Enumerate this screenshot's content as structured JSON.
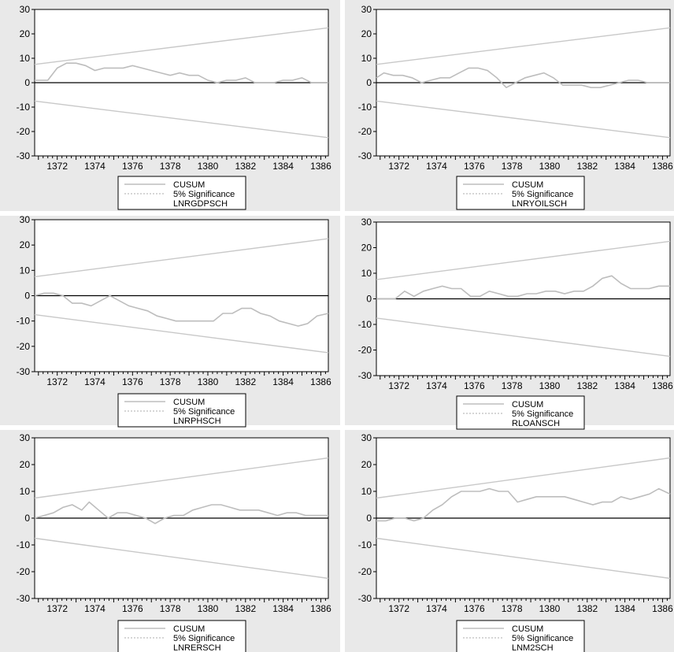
{
  "colors": {
    "cusum": "#bdbdbd",
    "significance": "#c8c8c8",
    "zero_line": "#000000",
    "background": "#e9e9e9"
  },
  "chart_data": [
    {
      "type": "line",
      "xlim": [
        1370.8,
        1386.4
      ],
      "ylim": [
        -30,
        30
      ],
      "yticks": [
        "30",
        "20",
        "10",
        "0",
        "-10",
        "-20",
        "-30"
      ],
      "xticks": [
        "1372",
        "1374",
        "1376",
        "1378",
        "1380",
        "1382",
        "1384",
        "1386"
      ],
      "legend": [
        "CUSUM",
        "5% Significance"
      ],
      "legend_title": "LNRGDPSCH",
      "series": [
        {
          "name": "CUSUM",
          "x": [
            1370.8,
            1371.5,
            1372.0,
            1372.5,
            1373.0,
            1373.5,
            1374.0,
            1374.5,
            1375.0,
            1375.5,
            1376.0,
            1376.5,
            1377.0,
            1377.5,
            1378.0,
            1378.5,
            1379.0,
            1379.5,
            1380.0,
            1380.5,
            1381.0,
            1381.5,
            1382.0,
            1382.5,
            1383.0,
            1383.5,
            1384.0,
            1384.5,
            1385.0,
            1385.5,
            1386.0,
            1386.4
          ],
          "values": [
            1,
            1,
            6,
            8,
            8,
            7,
            5,
            6,
            6,
            6,
            7,
            6,
            5,
            4,
            3,
            4,
            3,
            3,
            1,
            0,
            1,
            1,
            2,
            0,
            0,
            0,
            1,
            1,
            2,
            0,
            0,
            0
          ]
        },
        {
          "name": "5% Significance upper",
          "x": [
            1370.8,
            1386.4
          ],
          "values": [
            7.5,
            22.5
          ]
        },
        {
          "name": "5% Significance lower",
          "x": [
            1370.8,
            1386.4
          ],
          "values": [
            -7.5,
            -22.5
          ]
        }
      ]
    },
    {
      "type": "line",
      "xlim": [
        1370.8,
        1386.4
      ],
      "ylim": [
        -30,
        30
      ],
      "yticks": [
        "30",
        "20",
        "10",
        "0",
        "-10",
        "-20",
        "-30"
      ],
      "xticks": [
        "1372",
        "1374",
        "1376",
        "1378",
        "1380",
        "1382",
        "1384",
        "1386"
      ],
      "legend": [
        "CUSUM",
        "5% Significance"
      ],
      "legend_title": "LNRYOILSCH",
      "series": [
        {
          "name": "CUSUM",
          "x": [
            1370.8,
            1371.2,
            1371.7,
            1372.2,
            1372.7,
            1373.2,
            1373.7,
            1374.2,
            1374.7,
            1375.2,
            1375.7,
            1376.2,
            1376.7,
            1377.2,
            1377.7,
            1378.2,
            1378.7,
            1379.2,
            1379.7,
            1380.2,
            1380.7,
            1381.2,
            1381.7,
            1382.2,
            1382.7,
            1383.2,
            1383.7,
            1384.2,
            1384.7,
            1385.2,
            1385.7,
            1386.4
          ],
          "values": [
            2,
            4,
            3,
            3,
            2,
            0,
            1,
            2,
            2,
            4,
            6,
            6,
            5,
            2,
            -2,
            0,
            2,
            3,
            4,
            2,
            -1,
            -1,
            -1,
            -2,
            -2,
            -1,
            0,
            1,
            1,
            0,
            0,
            0
          ]
        },
        {
          "name": "5% Significance upper",
          "x": [
            1370.8,
            1386.4
          ],
          "values": [
            7.5,
            22.5
          ]
        },
        {
          "name": "5% Significance lower",
          "x": [
            1370.8,
            1386.4
          ],
          "values": [
            -7.5,
            -22.5
          ]
        }
      ]
    },
    {
      "type": "line",
      "xlim": [
        1370.8,
        1386.4
      ],
      "ylim": [
        -30,
        30
      ],
      "yticks": [
        "30",
        "20",
        "10",
        "0",
        "-10",
        "-20",
        "-30"
      ],
      "xticks": [
        "1372",
        "1374",
        "1376",
        "1378",
        "1380",
        "1382",
        "1384",
        "1386"
      ],
      "legend": [
        "CUSUM",
        "5% Significance"
      ],
      "legend_title": "LNRPHSCH",
      "series": [
        {
          "name": "CUSUM",
          "x": [
            1370.8,
            1371.3,
            1371.8,
            1372.3,
            1372.8,
            1373.3,
            1373.8,
            1374.3,
            1374.8,
            1375.3,
            1375.8,
            1376.3,
            1376.8,
            1377.3,
            1377.8,
            1378.3,
            1378.8,
            1379.3,
            1379.8,
            1380.3,
            1380.8,
            1381.3,
            1381.8,
            1382.3,
            1382.8,
            1383.3,
            1383.8,
            1384.3,
            1384.8,
            1385.3,
            1385.8,
            1386.4
          ],
          "values": [
            0,
            1,
            1,
            0,
            -3,
            -3,
            -4,
            -2,
            0,
            -2,
            -4,
            -5,
            -6,
            -8,
            -9,
            -10,
            -10,
            -10,
            -10,
            -10,
            -7,
            -7,
            -5,
            -5,
            -7,
            -8,
            -10,
            -11,
            -12,
            -11,
            -8,
            -7
          ]
        },
        {
          "name": "5% Significance upper",
          "x": [
            1370.8,
            1386.4
          ],
          "values": [
            7.5,
            22.5
          ]
        },
        {
          "name": "5% Significance lower",
          "x": [
            1370.8,
            1386.4
          ],
          "values": [
            -7.5,
            -22.5
          ]
        }
      ]
    },
    {
      "type": "line",
      "xlim": [
        1370.8,
        1386.4
      ],
      "ylim": [
        -30,
        30
      ],
      "yticks": [
        "30",
        "20",
        "10",
        "0",
        "-10",
        "-20",
        "-30"
      ],
      "xticks": [
        "1372",
        "1374",
        "1376",
        "1378",
        "1380",
        "1382",
        "1384",
        "1386"
      ],
      "legend": [
        "CUSUM",
        "5% Significance"
      ],
      "legend_title": "RLOANSCH",
      "series": [
        {
          "name": "CUSUM",
          "x": [
            1370.8,
            1371.3,
            1371.8,
            1372.3,
            1372.8,
            1373.3,
            1373.8,
            1374.3,
            1374.8,
            1375.3,
            1375.8,
            1376.3,
            1376.8,
            1377.3,
            1377.8,
            1378.3,
            1378.8,
            1379.3,
            1379.8,
            1380.3,
            1380.8,
            1381.3,
            1381.8,
            1382.3,
            1382.8,
            1383.3,
            1383.8,
            1384.3,
            1384.8,
            1385.3,
            1385.8,
            1386.4
          ],
          "values": [
            0,
            0,
            0,
            3,
            1,
            3,
            4,
            5,
            4,
            4,
            1,
            1,
            3,
            2,
            1,
            1,
            2,
            2,
            3,
            3,
            2,
            3,
            3,
            5,
            8,
            9,
            6,
            4,
            4,
            4,
            5,
            5
          ]
        },
        {
          "name": "5% Significance upper",
          "x": [
            1370.8,
            1386.4
          ],
          "values": [
            7.5,
            22.5
          ]
        },
        {
          "name": "5% Significance lower",
          "x": [
            1370.8,
            1386.4
          ],
          "values": [
            -7.5,
            -22.5
          ]
        }
      ]
    },
    {
      "type": "line",
      "xlim": [
        1370.8,
        1386.4
      ],
      "ylim": [
        -30,
        30
      ],
      "yticks": [
        "30",
        "20",
        "10",
        "0",
        "-10",
        "-20",
        "-30"
      ],
      "xticks": [
        "1372",
        "1374",
        "1376",
        "1378",
        "1380",
        "1382",
        "1384",
        "1386"
      ],
      "legend": [
        "CUSUM",
        "5% Significance"
      ],
      "legend_title": "LNRERSCH",
      "series": [
        {
          "name": "CUSUM",
          "x": [
            1370.8,
            1371.3,
            1371.8,
            1372.3,
            1372.8,
            1373.3,
            1373.7,
            1374.2,
            1374.7,
            1375.2,
            1375.7,
            1376.2,
            1376.7,
            1377.2,
            1377.7,
            1378.2,
            1378.7,
            1379.2,
            1379.7,
            1380.2,
            1380.7,
            1381.2,
            1381.7,
            1382.2,
            1382.7,
            1383.2,
            1383.7,
            1384.2,
            1384.7,
            1385.2,
            1385.7,
            1386.4
          ],
          "values": [
            0,
            1,
            2,
            4,
            5,
            3,
            6,
            3,
            0,
            2,
            2,
            1,
            0,
            -2,
            0,
            1,
            1,
            3,
            4,
            5,
            5,
            4,
            3,
            3,
            3,
            2,
            1,
            2,
            2,
            1,
            1,
            1
          ]
        },
        {
          "name": "5% Significance upper",
          "x": [
            1370.8,
            1386.4
          ],
          "values": [
            7.5,
            22.5
          ]
        },
        {
          "name": "5% Significance lower",
          "x": [
            1370.8,
            1386.4
          ],
          "values": [
            -7.5,
            -22.5
          ]
        }
      ]
    },
    {
      "type": "line",
      "xlim": [
        1370.8,
        1386.4
      ],
      "ylim": [
        -30,
        30
      ],
      "yticks": [
        "30",
        "20",
        "10",
        "0",
        "-10",
        "-20",
        "-30"
      ],
      "xticks": [
        "1372",
        "1374",
        "1376",
        "1378",
        "1380",
        "1382",
        "1384",
        "1386"
      ],
      "legend": [
        "CUSUM",
        "5% Significance"
      ],
      "legend_title": "LNM2SCH",
      "series": [
        {
          "name": "CUSUM",
          "x": [
            1370.8,
            1371.3,
            1371.8,
            1372.3,
            1372.8,
            1373.3,
            1373.8,
            1374.3,
            1374.8,
            1375.3,
            1375.8,
            1376.3,
            1376.8,
            1377.3,
            1377.8,
            1378.3,
            1378.8,
            1379.3,
            1379.8,
            1380.3,
            1380.8,
            1381.3,
            1381.8,
            1382.3,
            1382.8,
            1383.3,
            1383.8,
            1384.3,
            1384.8,
            1385.3,
            1385.8,
            1386.4
          ],
          "values": [
            -1,
            -1,
            0,
            0,
            -1,
            0,
            3,
            5,
            8,
            10,
            10,
            10,
            11,
            10,
            10,
            6,
            7,
            8,
            8,
            8,
            8,
            7,
            6,
            5,
            6,
            6,
            8,
            7,
            8,
            9,
            11,
            9
          ]
        },
        {
          "name": "5% Significance upper",
          "x": [
            1370.8,
            1386.4
          ],
          "values": [
            7.5,
            22.5
          ]
        },
        {
          "name": "5% Significance lower",
          "x": [
            1370.8,
            1386.4
          ],
          "values": [
            -7.5,
            -22.5
          ]
        }
      ]
    }
  ]
}
